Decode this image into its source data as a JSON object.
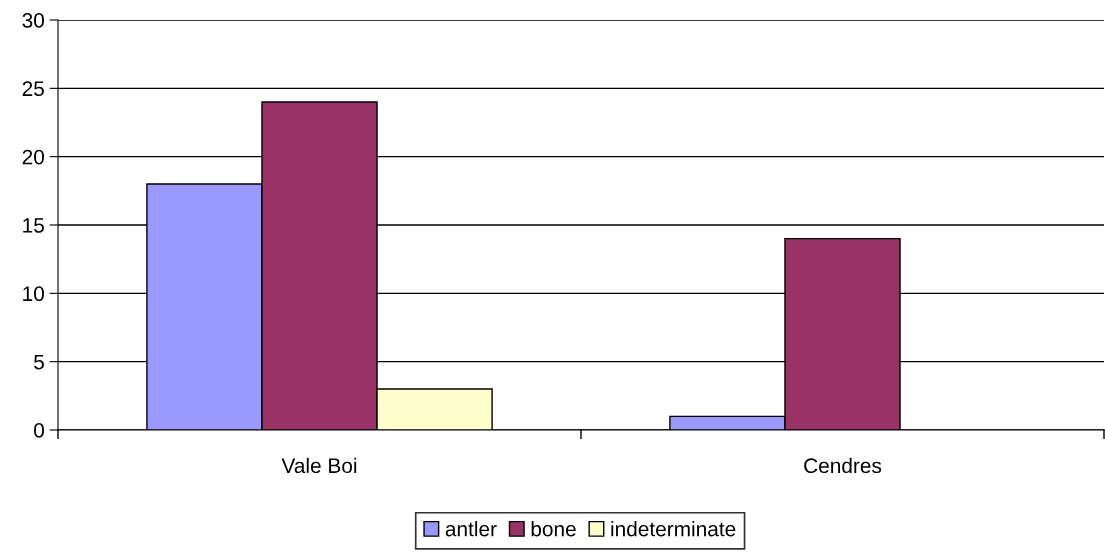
{
  "chart_data": {
    "type": "bar",
    "categories": [
      "Vale Boi",
      "Cendres"
    ],
    "series": [
      {
        "name": "antler",
        "color": "#9999ff",
        "values": [
          18,
          1
        ]
      },
      {
        "name": "bone",
        "color": "#993366",
        "values": [
          24,
          14
        ]
      },
      {
        "name": "indeterminate",
        "color": "#ffffcc",
        "values": [
          3,
          null
        ]
      }
    ],
    "ylim": [
      0,
      30
    ],
    "yticks": [
      0,
      5,
      10,
      15,
      20,
      25,
      30
    ],
    "grid": "y",
    "legend": "bottom"
  }
}
